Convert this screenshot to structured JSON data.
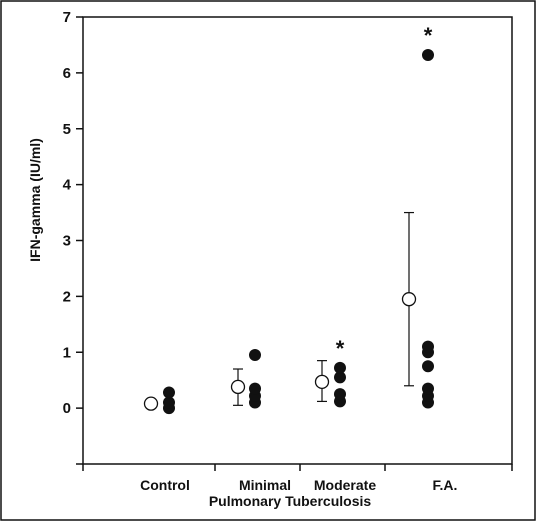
{
  "chart_data": {
    "type": "scatter",
    "ylabel": "IFN-gamma (IU/ml)",
    "xlabel": "Pulmonary Tuberculosis",
    "ylim": [
      -1,
      7
    ],
    "yticks": [
      0,
      1,
      2,
      3,
      4,
      5,
      6,
      7
    ],
    "categories": [
      "Control",
      "Minimal",
      "Moderate",
      "F.A."
    ],
    "grid": false,
    "legend": "none",
    "groups": [
      {
        "category": "Control",
        "mean": 0.08,
        "error_low": 0.03,
        "error_high": 0.13,
        "points": [
          0.0,
          0.1,
          0.28
        ],
        "significant": false
      },
      {
        "category": "Minimal",
        "mean": 0.38,
        "error_low": 0.05,
        "error_high": 0.7,
        "points": [
          0.1,
          0.22,
          0.35,
          0.95
        ],
        "significant": false
      },
      {
        "category": "Moderate",
        "mean": 0.47,
        "error_low": 0.12,
        "error_high": 0.85,
        "points": [
          0.12,
          0.25,
          0.55,
          0.72
        ],
        "significant": true
      },
      {
        "category": "F.A.",
        "mean": 1.95,
        "error_low": 0.4,
        "error_high": 3.5,
        "points": [
          0.1,
          0.22,
          0.35,
          0.75,
          1.0,
          1.1,
          6.32
        ],
        "significant": true
      }
    ],
    "significance_marker": "*",
    "colors": {
      "individual": "#111111",
      "mean_fill": "#ffffff",
      "axis": "#111111"
    }
  }
}
